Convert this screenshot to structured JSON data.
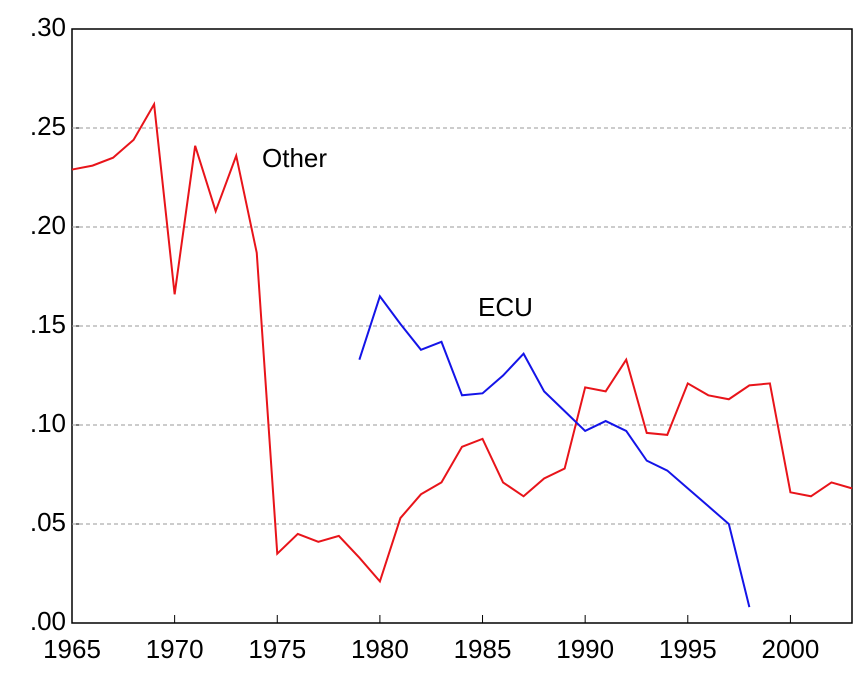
{
  "chart_data": {
    "type": "line",
    "x": [
      1965,
      1966,
      1967,
      1968,
      1969,
      1970,
      1971,
      1972,
      1973,
      1974,
      1975,
      1976,
      1977,
      1978,
      1979,
      1980,
      1981,
      1982,
      1983,
      1984,
      1985,
      1986,
      1987,
      1988,
      1989,
      1990,
      1991,
      1992,
      1993,
      1994,
      1995,
      1996,
      1997,
      1998,
      1999,
      2000,
      2001,
      2002,
      2003
    ],
    "series": [
      {
        "name": "Other",
        "color": "#e8141a",
        "values": [
          0.229,
          0.231,
          0.235,
          0.244,
          0.262,
          0.166,
          0.241,
          0.208,
          0.236,
          0.187,
          0.035,
          0.045,
          0.041,
          0.044,
          0.033,
          0.021,
          0.053,
          0.065,
          0.071,
          0.089,
          0.093,
          0.071,
          0.064,
          0.073,
          0.078,
          0.119,
          0.117,
          0.133,
          0.096,
          0.095,
          0.121,
          0.115,
          0.113,
          0.12,
          0.121,
          0.066,
          0.064,
          0.071,
          0.068
        ]
      },
      {
        "name": "ECU",
        "color": "#1414e8",
        "values": [
          null,
          null,
          null,
          null,
          null,
          null,
          null,
          null,
          null,
          null,
          null,
          null,
          null,
          null,
          0.133,
          0.165,
          0.151,
          0.138,
          0.142,
          0.115,
          0.116,
          0.125,
          0.136,
          0.117,
          0.107,
          0.097,
          0.102,
          0.097,
          0.082,
          0.077,
          0.068,
          0.059,
          0.05,
          0.008,
          null,
          null,
          null,
          null,
          null
        ]
      }
    ],
    "xlim": [
      1965,
      2003
    ],
    "xticks": [
      1965,
      1970,
      1975,
      1980,
      1985,
      1990,
      1995,
      2000
    ],
    "ylim": [
      0,
      0.3
    ],
    "yticks": [
      {
        "value": 0,
        "label": ".00"
      },
      {
        "value": 0.05,
        "label": ".05"
      },
      {
        "value": 0.1,
        "label": ".10"
      },
      {
        "value": 0.15,
        "label": ".15"
      },
      {
        "value": 0.2,
        "label": ".20"
      },
      {
        "value": 0.25,
        "label": ".25"
      },
      {
        "value": 0.3,
        "label": ".30"
      }
    ],
    "grid": true
  }
}
